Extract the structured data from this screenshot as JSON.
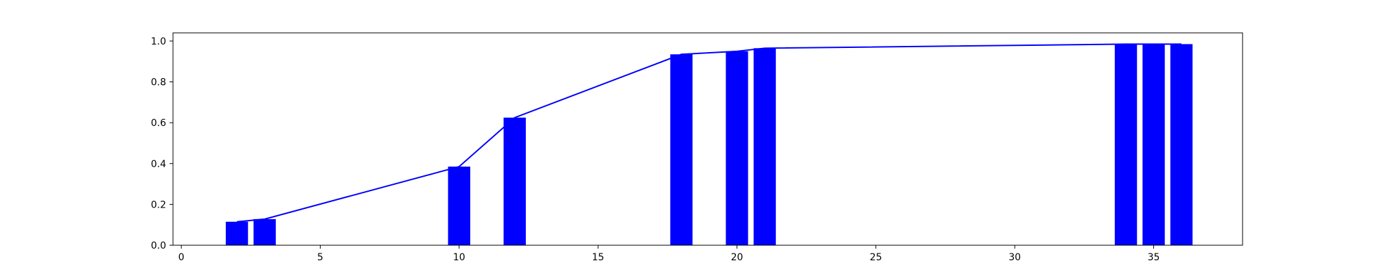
{
  "chart_data": {
    "type": "bar",
    "title": "",
    "xlabel": "",
    "ylabel": "",
    "xlim": [
      -0.3,
      38.2
    ],
    "ylim": [
      0,
      1.04
    ],
    "grid": false,
    "legend": "none",
    "xticks": [
      0,
      5,
      10,
      15,
      20,
      25,
      30,
      35
    ],
    "yticks": [
      0.0,
      0.2,
      0.4,
      0.6,
      0.8,
      1.0
    ],
    "xtick_labels": [
      "0",
      "5",
      "10",
      "15",
      "20",
      "25",
      "30",
      "35"
    ],
    "ytick_labels": [
      "0.0",
      "0.2",
      "0.4",
      "0.6",
      "0.8",
      "1.0"
    ],
    "bar_width": 0.8,
    "bar_color": "#0000ff",
    "line_color": "#0000ff",
    "series": [
      {
        "x": [
          2,
          3,
          10,
          12,
          18,
          20,
          21,
          34,
          35,
          36
        ],
        "values": [
          0.115,
          0.128,
          0.385,
          0.625,
          0.935,
          0.95,
          0.965,
          0.985,
          0.985,
          0.985
        ]
      }
    ]
  }
}
